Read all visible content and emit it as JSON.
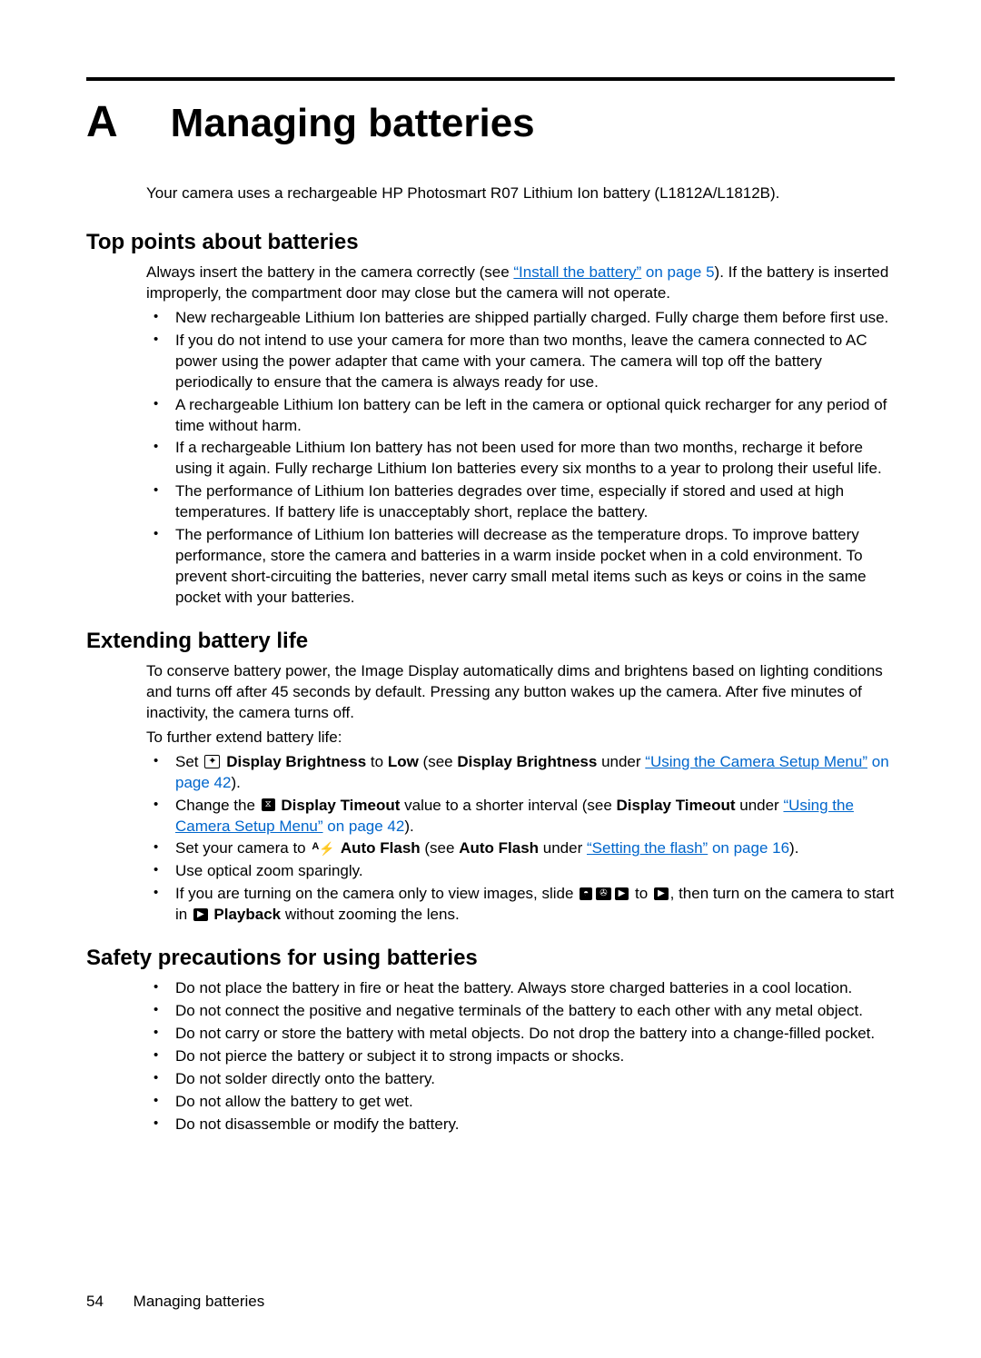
{
  "appendix": {
    "letter": "A",
    "title": "Managing batteries"
  },
  "intro": "Your camera uses a rechargeable HP Photosmart R07 Lithium Ion battery (L1812A/L1812B).",
  "sections": {
    "top_points": {
      "heading": "Top points about batteries",
      "lead_pre": "Always insert the battery in the camera correctly (see ",
      "lead_link": "“Install the battery”",
      "lead_page": " on page 5",
      "lead_post": "). If the battery is inserted improperly, the compartment door may close but the camera will not operate.",
      "items": [
        "New rechargeable Lithium Ion batteries are shipped partially charged. Fully charge them before first use.",
        "If you do not intend to use your camera for more than two months, leave the camera connected to AC power using the power adapter that came with your camera. The camera will top off the battery periodically to ensure that the camera is always ready for use.",
        "A rechargeable Lithium Ion battery can be left in the camera or optional quick recharger for any period of time without harm.",
        "If a rechargeable Lithium Ion battery has not been used for more than two months, recharge it before using it again. Fully recharge Lithium Ion batteries every six months to a year to prolong their useful life.",
        "The performance of Lithium Ion batteries degrades over time, especially if stored and used at high temperatures. If battery life is unacceptably short, replace the battery.",
        "The performance of Lithium Ion batteries will decrease as the temperature drops. To improve battery performance, store the camera and batteries in a warm inside pocket when in a cold environment. To prevent short-circuiting the batteries, never carry small metal items such as keys or coins in the same pocket with your batteries."
      ]
    },
    "extending": {
      "heading": "Extending battery life",
      "lead1": "To conserve battery power, the Image Display automatically dims and brightens based on lighting conditions and turns off after 45 seconds by default. Pressing any button wakes up the camera. After five minutes of inactivity, the camera turns off.",
      "lead2": "To further extend battery life:",
      "item1": {
        "pre": "Set ",
        "bold1": " Display Brightness",
        "mid1": " to ",
        "bold2": "Low",
        "mid2": " (see ",
        "bold3": "Display Brightness",
        "mid3": " under ",
        "link": "“Using the Camera Setup Menu”",
        "page": " on page 42",
        "post": ")."
      },
      "item2": {
        "pre": "Change the ",
        "bold1": " Display Timeout",
        "mid1": " value to a shorter interval (see ",
        "bold2": "Display Timeout",
        "mid2": " under ",
        "link": "“Using the Camera Setup Menu”",
        "page": " on page 42",
        "post": ")."
      },
      "item3": {
        "pre": "Set your camera to ",
        "bold1": " Auto Flash",
        "mid1": " (see ",
        "bold2": "Auto Flash",
        "mid2": " under ",
        "link": "“Setting the flash”",
        "page": " on page 16",
        "post": ")."
      },
      "item4": "Use optical zoom sparingly.",
      "item5": {
        "pre": "If you are turning on the camera only to view images, slide ",
        "mid": " to ",
        "post": ", then turn on the camera to start in ",
        "bold": " Playback",
        "end": " without zooming the lens."
      }
    },
    "safety": {
      "heading": "Safety precautions for using batteries",
      "items": [
        "Do not place the battery in fire or heat the battery. Always store charged batteries in a cool location.",
        "Do not connect the positive and negative terminals of the battery to each other with any metal object.",
        "Do not carry or store the battery with metal objects. Do not drop the battery into a change-filled pocket.",
        "Do not pierce the battery or subject it to strong impacts or shocks.",
        "Do not solder directly onto the battery.",
        "Do not allow the battery to get wet.",
        "Do not disassemble or modify the battery."
      ]
    }
  },
  "footer": {
    "page": "54",
    "title": "Managing batteries"
  },
  "colors": {
    "link": "#0066cc",
    "text": "#000000",
    "background": "#ffffff"
  },
  "icons": {
    "brightness": "✦",
    "timeout": "⧖",
    "flash": "⚡",
    "camera": "◓",
    "video": "✇",
    "play_small": "▶",
    "play": "▶"
  }
}
